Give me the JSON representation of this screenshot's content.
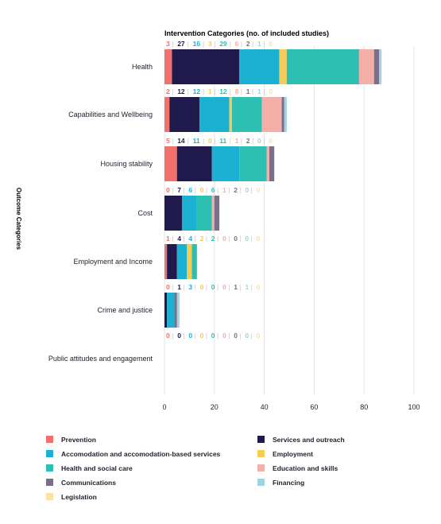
{
  "chart_data": {
    "type": "bar",
    "orientation": "horizontal",
    "stacked": true,
    "title": "Intervention Categories (no. of included studies)",
    "ylabel": "Outcome Categories",
    "xlabel": "",
    "xlim": [
      0,
      100
    ],
    "xticks": [
      0,
      20,
      40,
      60,
      80,
      100
    ],
    "grid": true,
    "legend_position": "bottom",
    "categories": [
      "Health",
      "Capabilities and Wellbeing",
      "Housing stability",
      "Cost",
      "Employment and Income",
      "Crime and justice",
      "Public attitudes and engagement"
    ],
    "series": [
      {
        "name": "Prevention",
        "color": "#f0716b",
        "values": [
          3,
          2,
          5,
          0,
          1,
          0,
          0
        ]
      },
      {
        "name": "Services and outreach",
        "color": "#1f1a4b",
        "values": [
          27,
          12,
          14,
          7,
          4,
          1,
          0
        ]
      },
      {
        "name": "Accomodation and accomodation-based services",
        "color": "#1cb0d3",
        "values": [
          16,
          12,
          11,
          6,
          4,
          3,
          0
        ]
      },
      {
        "name": "Employment",
        "color": "#f5cc56",
        "values": [
          3,
          1,
          0,
          0,
          2,
          0,
          0
        ]
      },
      {
        "name": "Health and social care",
        "color": "#2ebfb3",
        "values": [
          29,
          12,
          11,
          6,
          2,
          0,
          0
        ]
      },
      {
        "name": "Education and skills",
        "color": "#f4b0a8",
        "values": [
          6,
          8,
          1,
          1,
          0,
          0,
          0
        ]
      },
      {
        "name": "Communications",
        "color": "#7a6f8a",
        "values": [
          2,
          1,
          2,
          2,
          0,
          1,
          0
        ]
      },
      {
        "name": "Financing",
        "color": "#9fd3e2",
        "values": [
          1,
          1,
          0,
          0,
          0,
          1,
          0
        ]
      },
      {
        "name": "Legislation",
        "color": "#fbe2a4",
        "values": [
          0,
          0,
          0,
          0,
          0,
          0,
          0
        ]
      }
    ],
    "legend_order": [
      "Prevention",
      "Services and outreach",
      "Accomodation and accomodation-based services",
      "Employment",
      "Health and social care",
      "Education and skills",
      "Communications",
      "Financing",
      "Legislation"
    ]
  }
}
